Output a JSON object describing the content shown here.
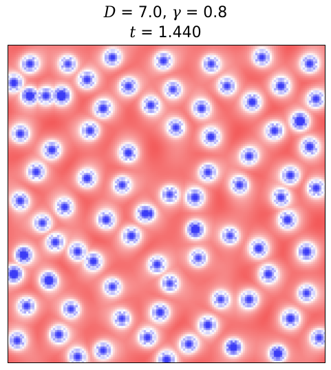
{
  "title": {
    "line1_d_symbol": "D",
    "line1_d_value": " = 7.0, ",
    "line1_gamma_symbol": "γ",
    "line1_gamma_value": " = 0.8",
    "line2_t_symbol": "t",
    "line2_t_value": " = 1.440"
  },
  "chart_data": {
    "type": "heatmap",
    "title": "D = 7.0, γ = 0.8   t = 1.440",
    "xlabel": "",
    "ylabel": "",
    "ticks": "none",
    "colormap": "bwr",
    "colors": {
      "low": "#3b3bf5",
      "mid": "#ffffff",
      "high": "#f24a4a"
    },
    "background_level": 0.8,
    "spots_normalized_xy": [
      [
        0.07,
        0.06
      ],
      [
        0.19,
        0.06
      ],
      [
        0.33,
        0.04
      ],
      [
        0.49,
        0.05
      ],
      [
        0.64,
        0.06
      ],
      [
        0.8,
        0.04
      ],
      [
        0.95,
        0.06
      ],
      [
        0.02,
        0.12
      ],
      [
        0.12,
        0.16
      ],
      [
        0.25,
        0.11
      ],
      [
        0.38,
        0.13
      ],
      [
        0.52,
        0.14
      ],
      [
        0.69,
        0.13
      ],
      [
        0.86,
        0.13
      ],
      [
        0.97,
        0.17
      ],
      [
        0.07,
        0.16
      ],
      [
        0.17,
        0.16
      ],
      [
        0.3,
        0.2
      ],
      [
        0.45,
        0.19
      ],
      [
        0.61,
        0.2
      ],
      [
        0.77,
        0.18
      ],
      [
        0.92,
        0.24
      ],
      [
        0.04,
        0.28
      ],
      [
        0.14,
        0.33
      ],
      [
        0.26,
        0.27
      ],
      [
        0.38,
        0.34
      ],
      [
        0.53,
        0.26
      ],
      [
        0.64,
        0.29
      ],
      [
        0.84,
        0.27
      ],
      [
        0.95,
        0.32
      ],
      [
        0.09,
        0.4
      ],
      [
        0.25,
        0.42
      ],
      [
        0.36,
        0.44
      ],
      [
        0.51,
        0.47
      ],
      [
        0.63,
        0.4
      ],
      [
        0.76,
        0.35
      ],
      [
        0.89,
        0.41
      ],
      [
        0.04,
        0.49
      ],
      [
        0.18,
        0.51
      ],
      [
        0.31,
        0.55
      ],
      [
        0.43,
        0.53
      ],
      [
        0.59,
        0.48
      ],
      [
        0.73,
        0.44
      ],
      [
        0.86,
        0.48
      ],
      [
        0.97,
        0.45
      ],
      [
        0.11,
        0.56
      ],
      [
        0.22,
        0.65
      ],
      [
        0.39,
        0.6
      ],
      [
        0.59,
        0.58
      ],
      [
        0.7,
        0.6
      ],
      [
        0.88,
        0.55
      ],
      [
        0.05,
        0.66
      ],
      [
        0.15,
        0.62
      ],
      [
        0.27,
        0.68
      ],
      [
        0.47,
        0.69
      ],
      [
        0.6,
        0.67
      ],
      [
        0.79,
        0.64
      ],
      [
        0.94,
        0.65
      ],
      [
        0.02,
        0.72
      ],
      [
        0.13,
        0.74
      ],
      [
        0.33,
        0.76
      ],
      [
        0.51,
        0.75
      ],
      [
        0.67,
        0.8
      ],
      [
        0.82,
        0.72
      ],
      [
        0.94,
        0.78
      ],
      [
        0.06,
        0.82
      ],
      [
        0.2,
        0.83
      ],
      [
        0.36,
        0.86
      ],
      [
        0.48,
        0.84
      ],
      [
        0.63,
        0.88
      ],
      [
        0.76,
        0.8
      ],
      [
        0.89,
        0.86
      ],
      [
        0.03,
        0.93
      ],
      [
        0.16,
        0.91
      ],
      [
        0.3,
        0.96
      ],
      [
        0.44,
        0.92
      ],
      [
        0.57,
        0.94
      ],
      [
        0.71,
        0.95
      ],
      [
        0.85,
        0.97
      ],
      [
        0.98,
        0.92
      ],
      [
        0.22,
        0.98
      ],
      [
        0.5,
        0.99
      ]
    ],
    "main_spots_normalized_xy": [
      [
        0.07,
        0.16
      ],
      [
        0.17,
        0.16
      ],
      [
        0.92,
        0.24
      ],
      [
        0.45,
        0.53
      ],
      [
        0.59,
        0.58
      ],
      [
        0.05,
        0.66
      ],
      [
        0.13,
        0.74
      ],
      [
        0.02,
        0.72
      ],
      [
        0.71,
        0.95
      ],
      [
        0.85,
        0.97
      ]
    ]
  }
}
